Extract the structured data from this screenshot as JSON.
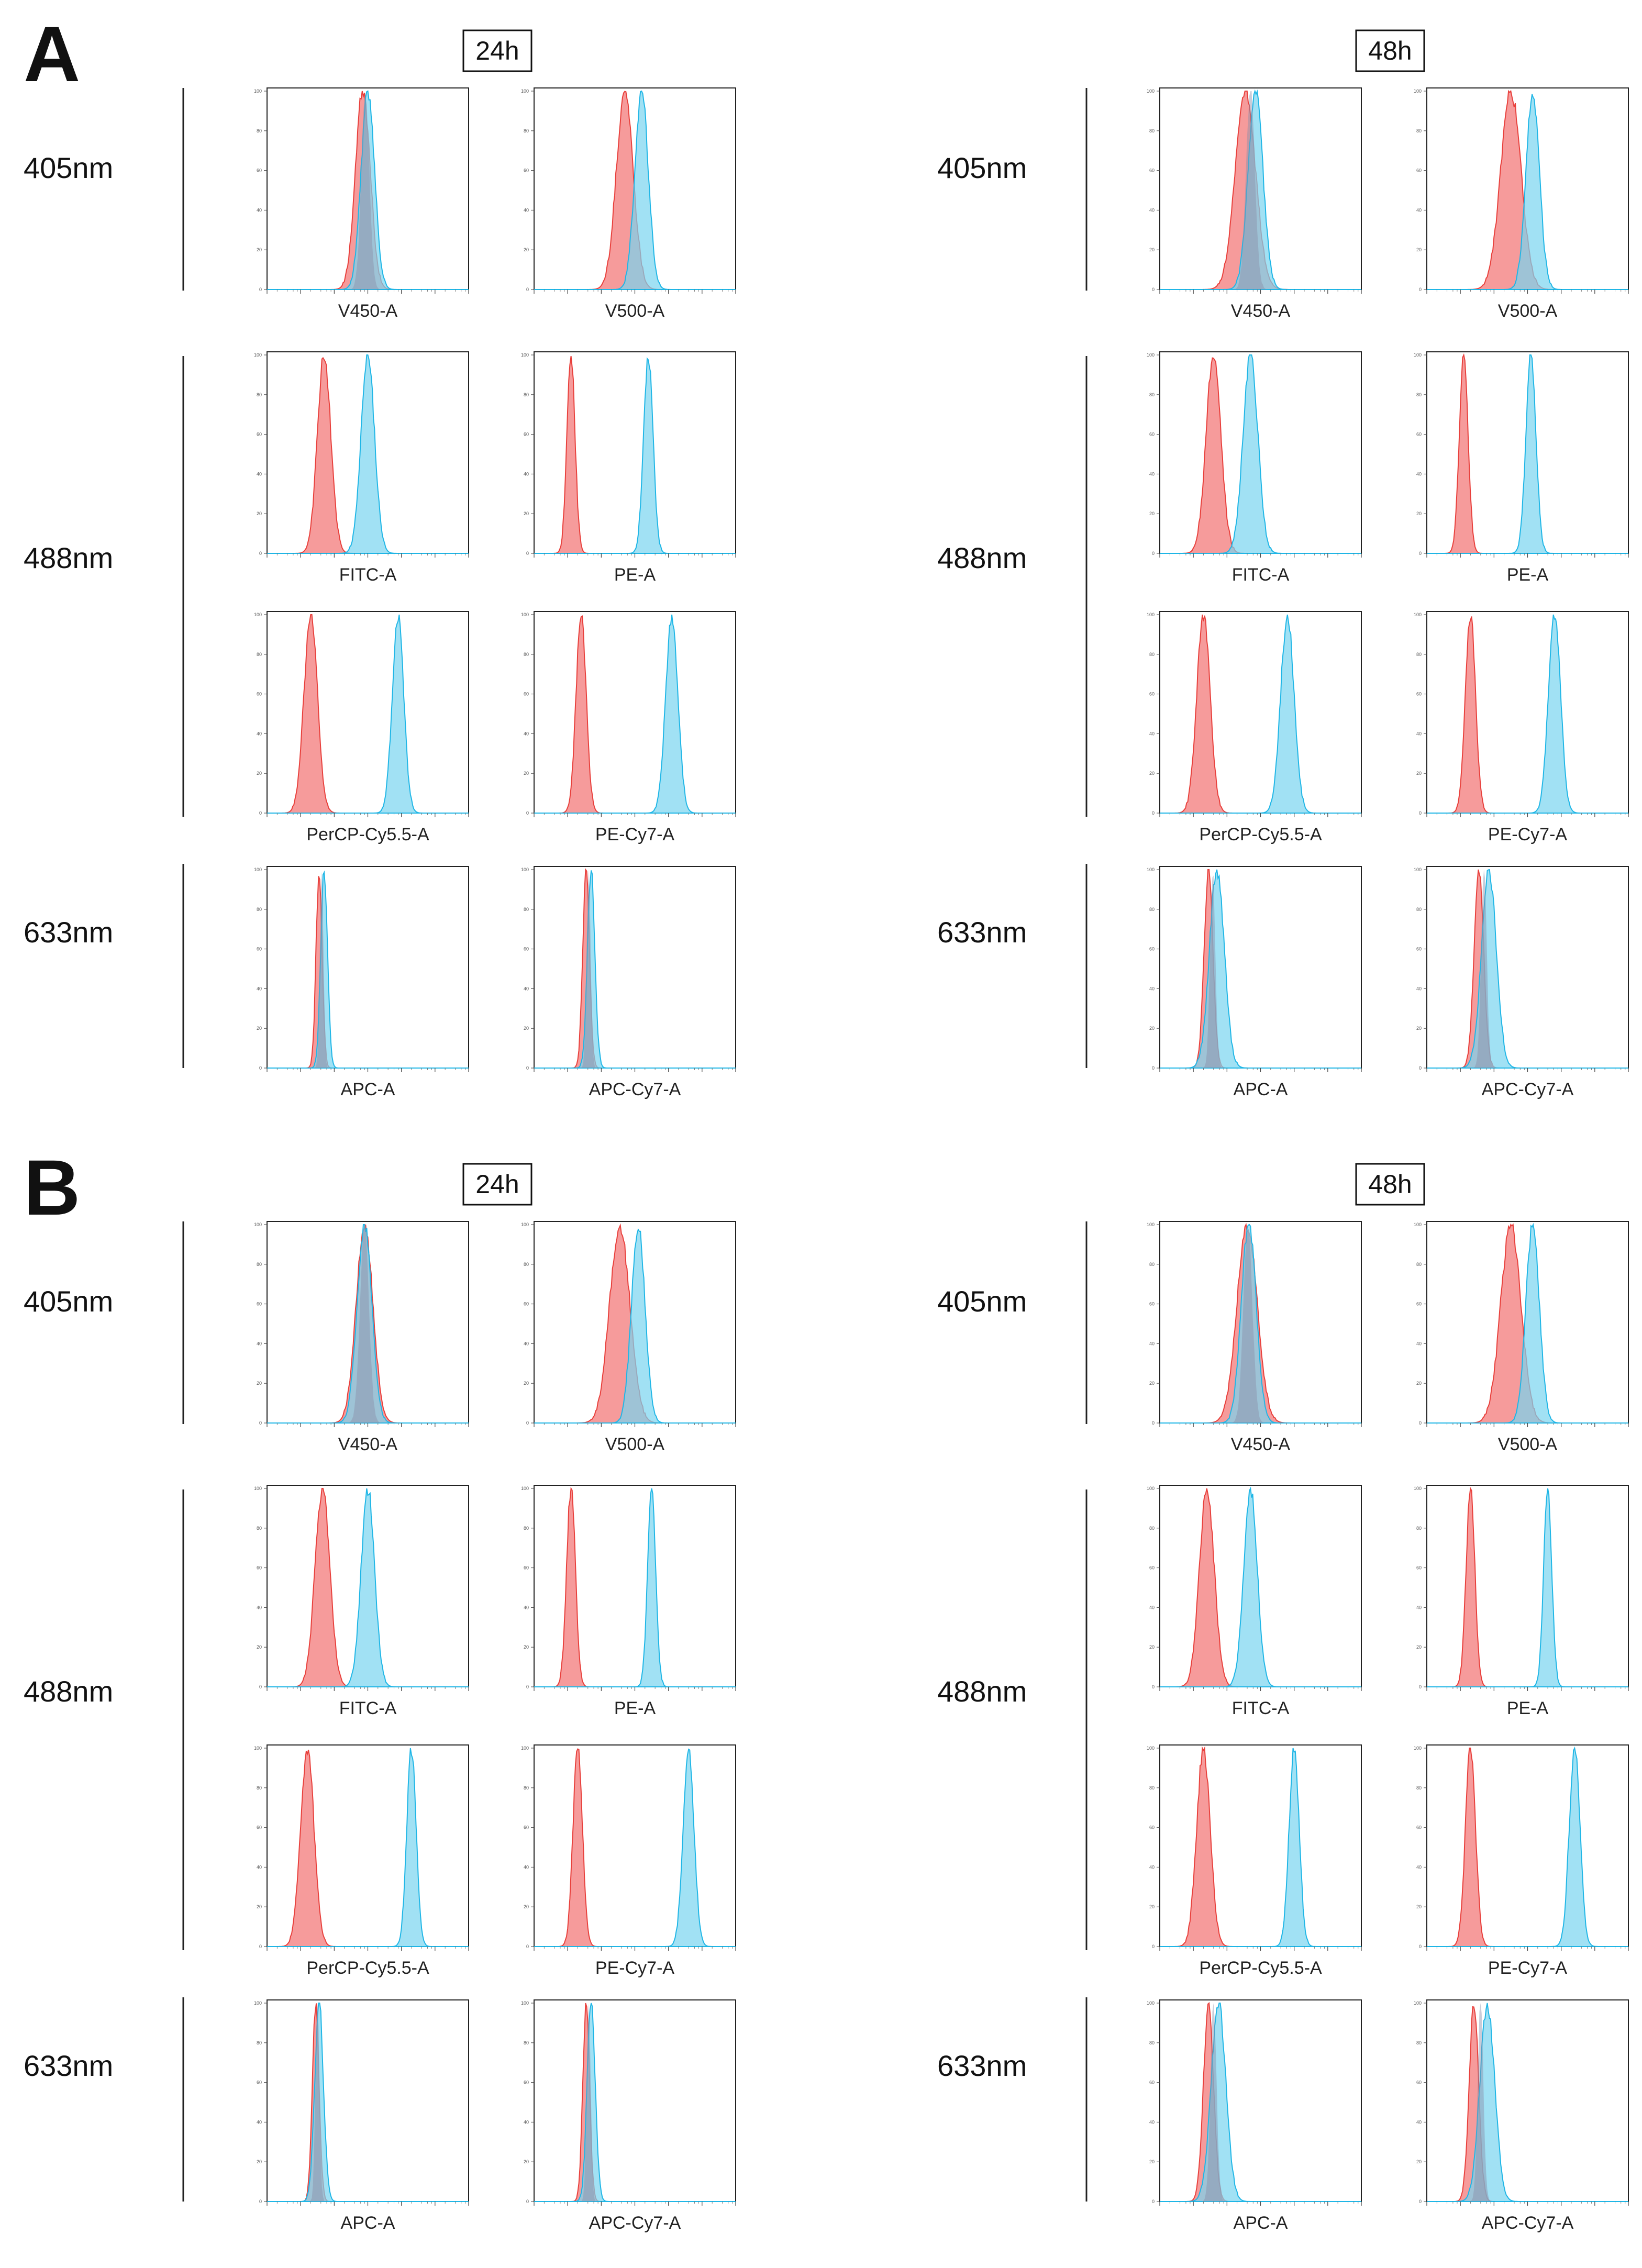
{
  "colors": {
    "red_fill": "#f48a8a",
    "red_line": "#e8403c",
    "blue_fill": "#79d4ef",
    "blue_line": "#1fb6e6",
    "frame": "#222222",
    "separator": "#222222"
  },
  "chart_data": {
    "type": "histogram-grid",
    "description_units": "x = log fluorescence decade position (0-6), y = % of max (0-100)",
    "y_ticks": [
      "100",
      "80",
      "60",
      "40",
      "20",
      "0"
    ],
    "panels": [
      {
        "letter": "A",
        "groups": [
          {
            "time": "24h",
            "lasers": [
              {
                "name": "405nm",
                "plots": [
                  {
                    "xlabel": "V450-A",
                    "red": {
                      "mu": 2.85,
                      "sigma": 0.22
                    },
                    "blue": {
                      "mu": 3.0,
                      "sigma": 0.2
                    }
                  },
                  {
                    "xlabel": "V500-A",
                    "red": {
                      "mu": 2.7,
                      "sigma": 0.25
                    },
                    "blue": {
                      "mu": 3.2,
                      "sigma": 0.2
                    }
                  }
                ]
              },
              {
                "name": "488nm",
                "plots": [
                  {
                    "xlabel": "FITC-A",
                    "red": {
                      "mu": 1.7,
                      "sigma": 0.2
                    },
                    "blue": {
                      "mu": 3.0,
                      "sigma": 0.2
                    }
                  },
                  {
                    "xlabel": "PE-A",
                    "red": {
                      "mu": 1.1,
                      "sigma": 0.12
                    },
                    "blue": {
                      "mu": 3.4,
                      "sigma": 0.14
                    }
                  },
                  {
                    "xlabel": "PerCP-Cy5.5-A",
                    "red": {
                      "mu": 1.3,
                      "sigma": 0.2
                    },
                    "blue": {
                      "mu": 3.9,
                      "sigma": 0.17
                    }
                  },
                  {
                    "xlabel": "PE-Cy7-A",
                    "red": {
                      "mu": 1.4,
                      "sigma": 0.15
                    },
                    "blue": {
                      "mu": 4.1,
                      "sigma": 0.18
                    }
                  }
                ]
              },
              {
                "name": "633nm",
                "plots": [
                  {
                    "xlabel": "APC-A",
                    "red": {
                      "mu": 1.55,
                      "sigma": 0.09
                    },
                    "blue": {
                      "mu": 1.7,
                      "sigma": 0.1
                    }
                  },
                  {
                    "xlabel": "APC-Cy7-A",
                    "red": {
                      "mu": 1.55,
                      "sigma": 0.1
                    },
                    "blue": {
                      "mu": 1.7,
                      "sigma": 0.11
                    }
                  }
                ]
              }
            ]
          },
          {
            "time": "48h",
            "lasers": [
              {
                "name": "405nm",
                "plots": [
                  {
                    "xlabel": "V450-A",
                    "red": {
                      "mu": 2.55,
                      "sigma": 0.3
                    },
                    "blue": {
                      "mu": 2.85,
                      "sigma": 0.22
                    }
                  },
                  {
                    "xlabel": "V500-A",
                    "red": {
                      "mu": 2.5,
                      "sigma": 0.3
                    },
                    "blue": {
                      "mu": 3.15,
                      "sigma": 0.2
                    }
                  }
                ]
              },
              {
                "name": "488nm",
                "plots": [
                  {
                    "xlabel": "FITC-A",
                    "red": {
                      "mu": 1.6,
                      "sigma": 0.22
                    },
                    "blue": {
                      "mu": 2.7,
                      "sigma": 0.22
                    }
                  },
                  {
                    "xlabel": "PE-A",
                    "red": {
                      "mu": 1.1,
                      "sigma": 0.13
                    },
                    "blue": {
                      "mu": 3.1,
                      "sigma": 0.15
                    }
                  },
                  {
                    "xlabel": "PerCP-Cy5.5-A",
                    "red": {
                      "mu": 1.3,
                      "sigma": 0.2
                    },
                    "blue": {
                      "mu": 3.8,
                      "sigma": 0.2
                    }
                  },
                  {
                    "xlabel": "PE-Cy7-A",
                    "red": {
                      "mu": 1.3,
                      "sigma": 0.15
                    },
                    "blue": {
                      "mu": 3.8,
                      "sigma": 0.18
                    }
                  }
                ]
              },
              {
                "name": "633nm",
                "plots": [
                  {
                    "xlabel": "APC-A",
                    "red": {
                      "mu": 1.45,
                      "sigma": 0.13
                    },
                    "blue": {
                      "mu": 1.7,
                      "sigma": 0.22
                    }
                  },
                  {
                    "xlabel": "APC-Cy7-A",
                    "red": {
                      "mu": 1.55,
                      "sigma": 0.14
                    },
                    "blue": {
                      "mu": 1.85,
                      "sigma": 0.22
                    }
                  }
                ]
              }
            ]
          }
        ]
      },
      {
        "letter": "B",
        "groups": [
          {
            "time": "24h",
            "lasers": [
              {
                "name": "405nm",
                "plots": [
                  {
                    "xlabel": "V450-A",
                    "red": {
                      "mu": 2.9,
                      "sigma": 0.25
                    },
                    "blue": {
                      "mu": 2.9,
                      "sigma": 0.22
                    }
                  },
                  {
                    "xlabel": "V500-A",
                    "red": {
                      "mu": 2.55,
                      "sigma": 0.3
                    },
                    "blue": {
                      "mu": 3.1,
                      "sigma": 0.2
                    }
                  }
                ]
              },
              {
                "name": "488nm",
                "plots": [
                  {
                    "xlabel": "FITC-A",
                    "red": {
                      "mu": 1.65,
                      "sigma": 0.22
                    },
                    "blue": {
                      "mu": 3.0,
                      "sigma": 0.2
                    }
                  },
                  {
                    "xlabel": "PE-A",
                    "red": {
                      "mu": 1.1,
                      "sigma": 0.13
                    },
                    "blue": {
                      "mu": 3.5,
                      "sigma": 0.12
                    }
                  },
                  {
                    "xlabel": "PerCP-Cy5.5-A",
                    "red": {
                      "mu": 1.2,
                      "sigma": 0.2
                    },
                    "blue": {
                      "mu": 4.3,
                      "sigma": 0.14
                    }
                  },
                  {
                    "xlabel": "PE-Cy7-A",
                    "red": {
                      "mu": 1.3,
                      "sigma": 0.14
                    },
                    "blue": {
                      "mu": 4.6,
                      "sigma": 0.16
                    }
                  }
                ]
              },
              {
                "name": "633nm",
                "plots": [
                  {
                    "xlabel": "APC-A",
                    "red": {
                      "mu": 1.45,
                      "sigma": 0.1
                    },
                    "blue": {
                      "mu": 1.55,
                      "sigma": 0.13
                    }
                  },
                  {
                    "xlabel": "APC-Cy7-A",
                    "red": {
                      "mu": 1.55,
                      "sigma": 0.1
                    },
                    "blue": {
                      "mu": 1.7,
                      "sigma": 0.12
                    }
                  }
                ]
              }
            ]
          },
          {
            "time": "48h",
            "lasers": [
              {
                "name": "405nm",
                "plots": [
                  {
                    "xlabel": "V450-A",
                    "red": {
                      "mu": 2.6,
                      "sigma": 0.3
                    },
                    "blue": {
                      "mu": 2.65,
                      "sigma": 0.22
                    }
                  },
                  {
                    "xlabel": "V500-A",
                    "red": {
                      "mu": 2.5,
                      "sigma": 0.3
                    },
                    "blue": {
                      "mu": 3.15,
                      "sigma": 0.2
                    }
                  }
                ]
              },
              {
                "name": "488nm",
                "plots": [
                  {
                    "xlabel": "FITC-A",
                    "red": {
                      "mu": 1.4,
                      "sigma": 0.22
                    },
                    "blue": {
                      "mu": 2.7,
                      "sigma": 0.2
                    }
                  },
                  {
                    "xlabel": "PE-A",
                    "red": {
                      "mu": 1.3,
                      "sigma": 0.13
                    },
                    "blue": {
                      "mu": 3.6,
                      "sigma": 0.12
                    }
                  },
                  {
                    "xlabel": "PerCP-Cy5.5-A",
                    "red": {
                      "mu": 1.3,
                      "sigma": 0.2
                    },
                    "blue": {
                      "mu": 4.0,
                      "sigma": 0.15
                    }
                  },
                  {
                    "xlabel": "PE-Cy7-A",
                    "red": {
                      "mu": 1.3,
                      "sigma": 0.15
                    },
                    "blue": {
                      "mu": 4.4,
                      "sigma": 0.16
                    }
                  }
                ]
              },
              {
                "name": "633nm",
                "plots": [
                  {
                    "xlabel": "APC-A",
                    "red": {
                      "mu": 1.45,
                      "sigma": 0.15
                    },
                    "blue": {
                      "mu": 1.75,
                      "sigma": 0.22
                    }
                  },
                  {
                    "xlabel": "APC-Cy7-A",
                    "red": {
                      "mu": 1.4,
                      "sigma": 0.14
                    },
                    "blue": {
                      "mu": 1.8,
                      "sigma": 0.22
                    }
                  }
                ]
              }
            ]
          }
        ]
      }
    ]
  }
}
